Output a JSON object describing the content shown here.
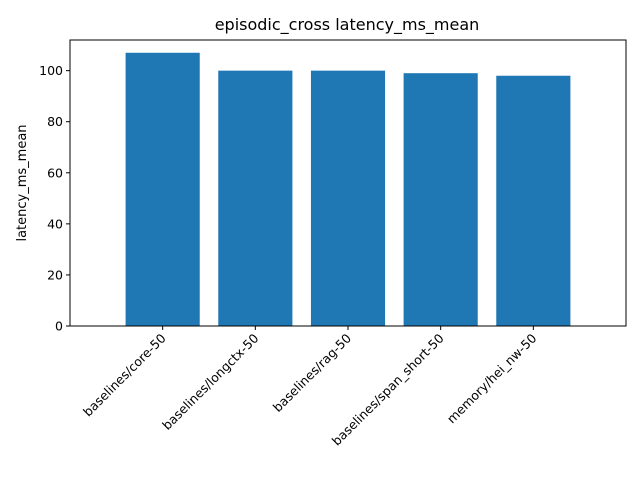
{
  "chart_data": {
    "type": "bar",
    "title": "episodic_cross latency_ms_mean",
    "xlabel": "",
    "ylabel": "latency_ms_mean",
    "categories": [
      "baselines/core-50",
      "baselines/longctx-50",
      "baselines/rag-50",
      "baselines/span_short-50",
      "memory/hei_nw-50"
    ],
    "values": [
      107,
      100,
      100,
      99,
      98
    ],
    "ylim": [
      0,
      112
    ],
    "yticks": [
      0,
      20,
      40,
      60,
      80,
      100
    ],
    "bar_color": "#1f77b4",
    "grid": false,
    "legend": "none"
  }
}
